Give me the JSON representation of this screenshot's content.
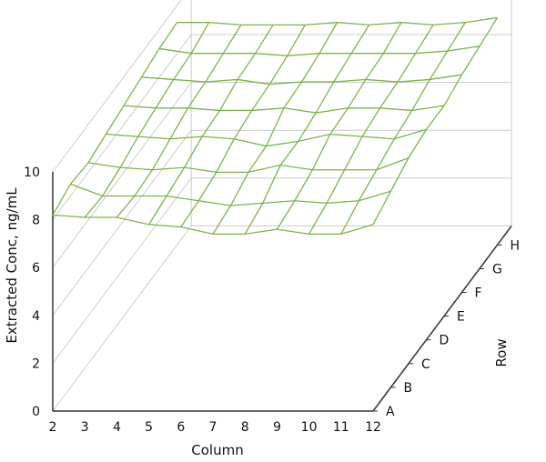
{
  "chart_data": {
    "type": "surface",
    "zlabel": "Extracted Conc, ng/mL",
    "xlabel": "Column",
    "ylabel": "Row",
    "zlim": [
      0,
      10
    ],
    "z_ticks": [
      "0",
      "2",
      "4",
      "6",
      "8",
      "10"
    ],
    "columns": [
      "2",
      "3",
      "4",
      "5",
      "6",
      "7",
      "8",
      "9",
      "10",
      "11",
      "12"
    ],
    "rows": [
      "A",
      "B",
      "C",
      "D",
      "E",
      "F",
      "G",
      "H"
    ],
    "grid": true,
    "surface_color": "#7ab648",
    "values": [
      [
        8.2,
        8.1,
        8.1,
        7.8,
        7.7,
        7.4,
        7.4,
        7.6,
        7.4,
        7.4,
        7.8
      ],
      [
        8.5,
        8.0,
        8.0,
        8.0,
        7.8,
        7.6,
        7.7,
        7.8,
        7.7,
        7.8,
        8.2
      ],
      [
        8.4,
        8.2,
        8.1,
        8.2,
        8.0,
        8.0,
        8.3,
        8.1,
        8.1,
        8.1,
        8.6
      ],
      [
        8.6,
        8.5,
        8.4,
        8.5,
        8.4,
        8.1,
        8.3,
        8.6,
        8.5,
        8.4,
        8.8
      ],
      [
        8.8,
        8.7,
        8.7,
        8.6,
        8.6,
        8.7,
        8.5,
        8.7,
        8.7,
        8.6,
        8.8
      ],
      [
        9.0,
        8.9,
        8.8,
        8.9,
        8.7,
        8.8,
        8.8,
        8.9,
        8.8,
        8.9,
        9.1
      ],
      [
        9.2,
        9.0,
        9.0,
        9.0,
        8.9,
        9.0,
        9.0,
        9.0,
        9.0,
        9.1,
        9.3
      ],
      [
        9.3,
        9.3,
        9.2,
        9.2,
        9.2,
        9.3,
        9.2,
        9.3,
        9.2,
        9.3,
        9.5
      ]
    ]
  }
}
